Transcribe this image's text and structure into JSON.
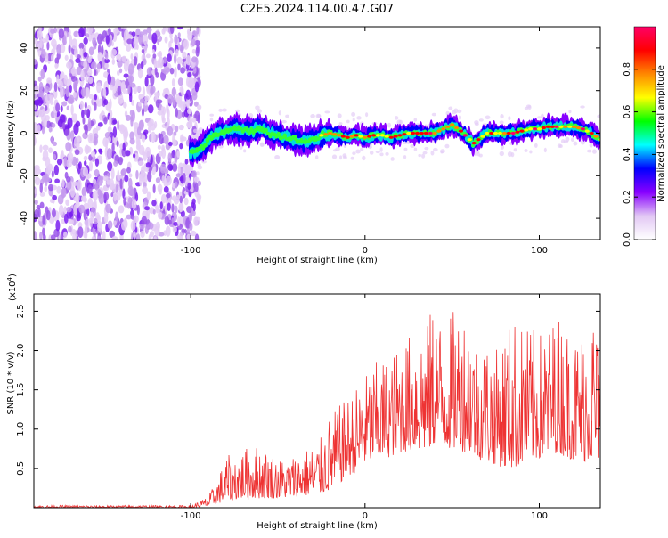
{
  "title": "C2E5.2024.114.00.47.G07",
  "chart_data": [
    {
      "type": "heatmap",
      "xlabel": "Height of straight line (km)",
      "ylabel": "Frequency (Hz)",
      "xlim": [
        -190,
        135
      ],
      "ylim": [
        -50,
        50
      ],
      "xticks": [
        -100,
        0,
        100
      ],
      "xtick_labels": [
        "-100",
        "0",
        "100"
      ],
      "yticks": [
        -40,
        -20,
        0,
        20,
        40
      ],
      "ytick_labels": [
        "-40",
        "-20",
        "0",
        "20",
        "40"
      ],
      "grid": false,
      "noise_region_x": [
        -190,
        -95
      ],
      "signal_ridge": {
        "x": [
          -100,
          -95,
          -90,
          -85,
          -80,
          -75,
          -70,
          -65,
          -60,
          -55,
          -50,
          -45,
          -40,
          -35,
          -30,
          -25,
          -20,
          -15,
          -10,
          -5,
          0,
          5,
          10,
          15,
          20,
          25,
          30,
          35,
          40,
          45,
          50,
          55,
          60,
          62,
          65,
          70,
          75,
          80,
          85,
          90,
          95,
          100,
          105,
          110,
          115,
          120,
          125,
          130,
          135
        ],
        "y": [
          -9,
          -8,
          -3,
          0,
          1,
          2,
          1,
          1,
          3,
          0,
          -1,
          -2,
          -3,
          -4,
          -3,
          -1,
          0,
          -1,
          -2,
          -1,
          -2,
          -1,
          -1,
          -2,
          -1,
          0,
          0,
          0,
          0,
          2,
          4,
          1,
          -3,
          -5,
          -3,
          0,
          0,
          0,
          0,
          1,
          2,
          2,
          3,
          3,
          3,
          3,
          2,
          0,
          -3
        ]
      },
      "colorbar": {
        "label": "Normalized spectral amplitude",
        "range": [
          0,
          1
        ],
        "ticks": [
          0.0,
          0.2,
          0.4,
          0.6,
          0.8
        ],
        "tick_labels": [
          "0.0",
          "0.2",
          "0.4",
          "0.6",
          "0.8"
        ],
        "colors": [
          "#ffffff",
          "#e2c8f4",
          "#8800ff",
          "#0000ff",
          "#00ffff",
          "#00ff00",
          "#ffff00",
          "#ff8800",
          "#ff0000",
          "#ff0066"
        ]
      }
    },
    {
      "type": "line",
      "xlabel": "Height of straight line (km)",
      "ylabel": "SNR (10 * v/v)",
      "y_multiplier_label": "(x10",
      "y_multiplier_exp": "4",
      "y_multiplier_close": ")",
      "xlim": [
        -190,
        135
      ],
      "ylim": [
        0,
        2.72
      ],
      "xticks": [
        -100,
        0,
        100
      ],
      "xtick_labels": [
        "-100",
        "0",
        "100"
      ],
      "yticks": [
        0.5,
        1.0,
        1.5,
        2.0,
        2.5
      ],
      "ytick_labels": [
        "0.5",
        "1.0",
        "1.5",
        "2.0",
        "2.5"
      ],
      "grid": false,
      "series": [
        {
          "color": "#ee3333",
          "envelope_x": [
            -190,
            -100,
            -95,
            -90,
            -85,
            -80,
            -75,
            -70,
            -65,
            -60,
            -55,
            -50,
            -45,
            -40,
            -35,
            -30,
            -25,
            -20,
            -15,
            -10,
            -5,
            0,
            5,
            10,
            15,
            20,
            25,
            30,
            35,
            40,
            45,
            50,
            55,
            60,
            65,
            70,
            75,
            80,
            85,
            90,
            95,
            100,
            105,
            110,
            115,
            120,
            125,
            130,
            135
          ],
          "envelope_lo": [
            0.0,
            0.0,
            0.01,
            0.02,
            0.05,
            0.08,
            0.1,
            0.12,
            0.12,
            0.12,
            0.12,
            0.12,
            0.13,
            0.14,
            0.15,
            0.16,
            0.18,
            0.22,
            0.3,
            0.4,
            0.45,
            0.55,
            0.6,
            0.62,
            0.65,
            0.7,
            0.72,
            0.72,
            0.73,
            0.75,
            0.75,
            0.75,
            0.72,
            0.7,
            0.62,
            0.58,
            0.55,
            0.5,
            0.5,
            0.55,
            0.6,
            0.62,
            0.65,
            0.7,
            0.65,
            0.6,
            0.58,
            0.6,
            0.6
          ],
          "envelope_hi": [
            0.03,
            0.03,
            0.08,
            0.15,
            0.35,
            0.65,
            0.7,
            0.75,
            0.8,
            0.8,
            0.72,
            0.65,
            0.6,
            0.7,
            0.75,
            0.8,
            0.9,
            1.2,
            1.3,
            1.4,
            1.55,
            1.7,
            1.85,
            1.9,
            1.95,
            2.1,
            2.2,
            2.4,
            2.3,
            2.7,
            2.3,
            2.5,
            2.6,
            2.5,
            2.1,
            2.2,
            2.0,
            2.3,
            2.45,
            2.35,
            2.3,
            2.25,
            2.3,
            2.5,
            2.35,
            2.2,
            2.3,
            2.7,
            2.0
          ]
        }
      ]
    }
  ]
}
